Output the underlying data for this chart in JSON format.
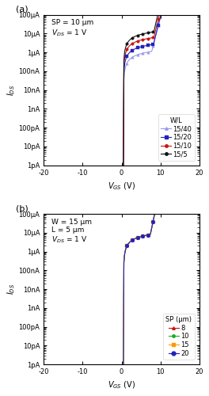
{
  "ylim_min": 1e-12,
  "ylim_max": 0.0001,
  "fig_width": 2.64,
  "fig_height": 5.0,
  "dpi": 100,
  "ytick_labels": [
    "1pA",
    "10pA",
    "100pA",
    "1nA",
    "10nA",
    "100nA",
    "1μA",
    "10μA",
    "100μA"
  ],
  "ytick_values": [
    1e-12,
    1e-11,
    1e-10,
    1e-09,
    1e-08,
    1e-07,
    1e-06,
    1e-05,
    0.0001
  ],
  "xticks": [
    -20,
    -10,
    0,
    10,
    20
  ],
  "xlim": [
    -20,
    20
  ],
  "panel_a": {
    "label": "(a)",
    "ann_text": "SP = 10 μm\n$V_{DS}$ = 1 V",
    "xlabel": "$V_{GS}$ (V)",
    "ylabel": "$I_{DS}$",
    "legend_title": "W/L",
    "series": [
      {
        "label": "15/40",
        "color": "#9999ee",
        "marker": "^",
        "markersize": 2.5,
        "Vth": 0.5,
        "Ion": 1.5e-06,
        "S": 1.2
      },
      {
        "label": "15/20",
        "color": "#2222bb",
        "marker": "s",
        "markersize": 2.5,
        "Vth": 0.5,
        "Ion": 3.5e-06,
        "S": 1.2
      },
      {
        "label": "15/10",
        "color": "#cc1111",
        "marker": "o",
        "markersize": 2.5,
        "Vth": 0.5,
        "Ion": 8e-06,
        "S": 1.15
      },
      {
        "label": "15/5",
        "color": "#111111",
        "marker": "o",
        "markersize": 2.5,
        "Vth": 0.5,
        "Ion": 1.6e-05,
        "S": 1.1
      }
    ]
  },
  "panel_b": {
    "label": "(b)",
    "ann_text": "W = 15 μm\nL = 5 μm\n$V_{DS}$ = 1 V",
    "xlabel": "$V_{GS}$ (V)",
    "ylabel": "$I_{DS}$",
    "legend_title": "SP (μm)",
    "series": [
      {
        "label": "8",
        "color": "#cc1111",
        "marker": "^",
        "markersize": 2.5,
        "Vth": 0.5,
        "Ion": 1.1e-05,
        "S": 1.0
      },
      {
        "label": "10",
        "color": "#22aa22",
        "marker": "o",
        "markersize": 2.5,
        "Vth": 0.5,
        "Ion": 1.1e-05,
        "S": 1.0
      },
      {
        "label": "15",
        "color": "#ff9900",
        "marker": "s",
        "markersize": 2.5,
        "Vth": 0.5,
        "Ion": 1.1e-05,
        "S": 1.0
      },
      {
        "label": "20",
        "color": "#2222bb",
        "marker": "o",
        "markersize": 3.5,
        "Vth": 0.5,
        "Ion": 1.1e-05,
        "S": 1.0
      }
    ]
  }
}
